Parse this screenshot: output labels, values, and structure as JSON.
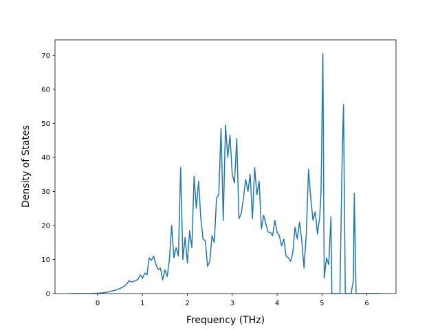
{
  "chart_data": {
    "type": "line",
    "xlabel": "Frequency (THz)",
    "ylabel": "Density of States",
    "xlim": [
      -0.95,
      6.65
    ],
    "ylim": [
      0,
      74.5
    ],
    "x_ticks": [
      0,
      1,
      2,
      3,
      4,
      5,
      6
    ],
    "y_ticks": [
      0,
      10,
      20,
      30,
      40,
      50,
      60,
      70
    ],
    "grid": false,
    "line_color": "#1f77b4",
    "series": [
      {
        "x": [
          -0.6,
          -0.4,
          -0.2,
          0,
          0.1,
          0.2,
          0.3,
          0.4,
          0.5,
          0.6,
          0.65,
          0.7,
          0.75,
          0.8,
          0.85,
          0.9,
          0.95,
          1.0,
          1.05,
          1.1,
          1.15,
          1.2,
          1.25,
          1.3,
          1.35,
          1.4,
          1.45,
          1.5,
          1.55,
          1.6,
          1.65,
          1.7,
          1.75,
          1.8,
          1.85,
          1.9,
          1.95,
          2.0,
          2.05,
          2.1,
          2.15,
          2.2,
          2.25,
          2.3,
          2.35,
          2.4,
          2.45,
          2.5,
          2.55,
          2.6,
          2.65,
          2.7,
          2.75,
          2.8,
          2.85,
          2.9,
          2.95,
          3.0,
          3.05,
          3.1,
          3.15,
          3.2,
          3.25,
          3.3,
          3.35,
          3.4,
          3.45,
          3.5,
          3.55,
          3.6,
          3.65,
          3.7,
          3.75,
          3.8,
          3.85,
          3.9,
          3.95,
          4.0,
          4.05,
          4.1,
          4.15,
          4.2,
          4.25,
          4.3,
          4.35,
          4.4,
          4.45,
          4.5,
          4.55,
          4.6,
          4.65,
          4.7,
          4.75,
          4.8,
          4.85,
          4.9,
          4.95,
          4.98,
          5.02,
          5.05,
          5.1,
          5.15,
          5.2,
          5.22,
          5.25,
          5.3,
          5.35,
          5.4,
          5.45,
          5.48,
          5.52,
          5.55,
          5.6,
          5.65,
          5.7,
          5.72,
          5.76,
          5.8,
          5.9,
          6.0,
          6.1,
          6.2,
          6.3
        ],
        "values": [
          0,
          0,
          0,
          0.1,
          0.2,
          0.4,
          0.7,
          1.0,
          1.5,
          2.2,
          2.8,
          3.8,
          3.4,
          3.6,
          3.8,
          4.2,
          5.5,
          4.5,
          6.0,
          5.5,
          10.5,
          9.8,
          11.0,
          8.5,
          7.0,
          7.5,
          4.0,
          7.0,
          5.0,
          10.0,
          20.0,
          10.5,
          13.5,
          11.0,
          37.0,
          10.0,
          16.5,
          9.0,
          18.5,
          13.5,
          34.5,
          25.0,
          33.0,
          22.0,
          16.0,
          15.5,
          8.0,
          9.5,
          17.0,
          15.0,
          28.0,
          29.0,
          48.5,
          21.5,
          49.5,
          40.0,
          46.5,
          35.0,
          32.5,
          45.5,
          22.0,
          23.5,
          28.0,
          33.5,
          30.0,
          35.0,
          22.0,
          37.0,
          29.0,
          33.0,
          19.0,
          23.0,
          20.5,
          18.0,
          18.0,
          17.0,
          21.5,
          18.0,
          17.0,
          14.0,
          16.0,
          11.0,
          10.5,
          9.5,
          12.0,
          19.5,
          16.0,
          21.0,
          15.5,
          7.5,
          17.5,
          36.5,
          28.0,
          21.5,
          24.0,
          17.5,
          22.5,
          30.0,
          70.5,
          4.5,
          10.5,
          8.5,
          22.5,
          0,
          0,
          0,
          0,
          0,
          40.0,
          55.5,
          0,
          0,
          0,
          0,
          4.0,
          29.5,
          0,
          0,
          0,
          0,
          0,
          0,
          0
        ]
      }
    ]
  }
}
